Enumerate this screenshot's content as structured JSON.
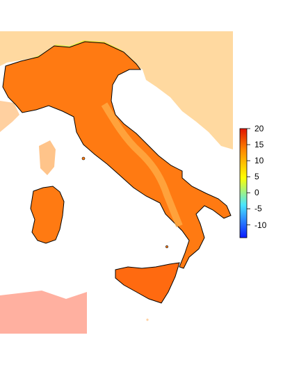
{
  "legend": {
    "ticks": [
      {
        "value": 20,
        "label": "20"
      },
      {
        "value": 15,
        "label": "15"
      },
      {
        "value": 10,
        "label": "10"
      },
      {
        "value": 5,
        "label": "5"
      },
      {
        "value": 0,
        "label": "0"
      },
      {
        "value": -5,
        "label": "-5"
      },
      {
        "value": -10,
        "label": "-10"
      }
    ],
    "range": [
      -14,
      20
    ],
    "colors": {
      "min": "#0a1aff",
      "low": "#49e6ff",
      "mid": "#ffff00",
      "high": "#ff8a00",
      "max": "#e01400"
    }
  },
  "map": {
    "land_color": "#ff7a12",
    "mountain_color": "#ffb34a",
    "alps_color": "#f6e94a",
    "surrounding_land_color": "#ffd9a0",
    "sea_color": "#ffffff"
  }
}
